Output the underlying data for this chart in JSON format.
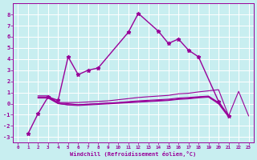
{
  "title": "",
  "xlabel": "Windchill (Refroidissement éolien,°C)",
  "background_color": "#c8eef0",
  "grid_color": "#ffffff",
  "line_color": "#990099",
  "xlim": [
    -0.5,
    23.5
  ],
  "ylim": [
    -3.5,
    9.0
  ],
  "xticks": [
    0,
    1,
    2,
    3,
    4,
    5,
    6,
    7,
    8,
    9,
    10,
    11,
    12,
    13,
    14,
    15,
    16,
    17,
    18,
    19,
    20,
    21,
    22,
    23
  ],
  "yticks": [
    -3,
    -2,
    -1,
    0,
    1,
    2,
    3,
    4,
    5,
    6,
    7,
    8
  ],
  "series0_x": [
    1,
    2,
    3,
    4,
    5,
    6,
    7,
    8,
    11,
    12,
    14,
    15,
    16,
    17,
    18,
    20,
    21
  ],
  "series0_y": [
    -2.7,
    -0.9,
    0.6,
    0.3,
    4.2,
    2.6,
    3.0,
    3.2,
    6.4,
    8.1,
    6.5,
    5.4,
    5.8,
    4.8,
    4.2,
    0.2,
    -1.1
  ],
  "flat_lines": [
    {
      "x": [
        2,
        3,
        4,
        5,
        6,
        7,
        8,
        9,
        10,
        11,
        12,
        13,
        14,
        15,
        16,
        17,
        18,
        19,
        20,
        21
      ],
      "y": [
        0.7,
        0.7,
        0.1,
        0.1,
        0.1,
        0.15,
        0.2,
        0.25,
        0.35,
        0.45,
        0.55,
        0.62,
        0.68,
        0.74,
        0.88,
        0.93,
        1.05,
        1.15,
        1.25,
        -1.1
      ]
    },
    {
      "x": [
        2,
        3,
        4,
        5,
        6,
        7,
        8,
        9,
        10,
        11,
        12,
        13,
        14,
        15,
        16,
        17,
        18,
        19,
        20,
        21
      ],
      "y": [
        0.5,
        0.5,
        0.0,
        -0.1,
        -0.1,
        -0.05,
        0.0,
        0.05,
        0.1,
        0.18,
        0.25,
        0.3,
        0.35,
        0.4,
        0.5,
        0.55,
        0.62,
        0.68,
        0.1,
        -1.1
      ]
    },
    {
      "x": [
        2,
        3,
        4,
        5,
        6,
        7,
        8,
        9,
        10,
        11,
        12,
        13,
        14,
        15,
        16,
        17,
        18,
        19,
        20,
        21,
        22,
        23
      ],
      "y": [
        0.6,
        0.6,
        0.05,
        -0.0,
        -0.1,
        -0.05,
        0.0,
        0.05,
        0.08,
        0.13,
        0.18,
        0.23,
        0.28,
        0.33,
        0.43,
        0.48,
        0.57,
        0.63,
        0.05,
        -1.1,
        1.1,
        -1.1
      ]
    },
    {
      "x": [
        2,
        3,
        4,
        5,
        6,
        7,
        8,
        9,
        10,
        11,
        12,
        13,
        14,
        15,
        16,
        17,
        18,
        19,
        20,
        21
      ],
      "y": [
        0.55,
        0.55,
        0.02,
        -0.12,
        -0.17,
        -0.12,
        -0.07,
        -0.02,
        0.03,
        0.08,
        0.13,
        0.18,
        0.23,
        0.28,
        0.38,
        0.43,
        0.52,
        0.58,
        -0.02,
        -1.2
      ]
    }
  ]
}
